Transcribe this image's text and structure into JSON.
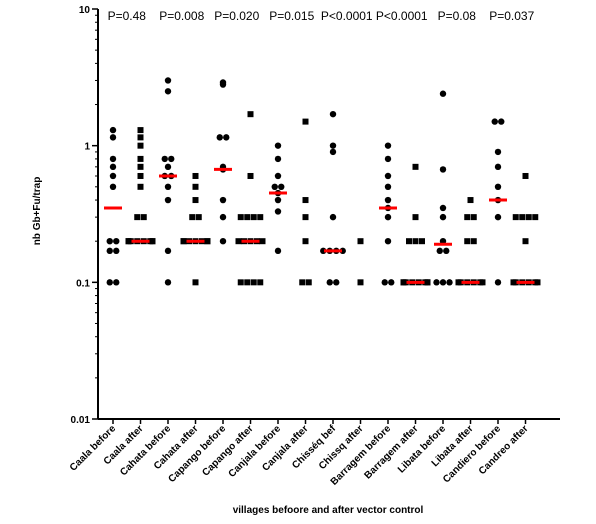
{
  "chart_data": {
    "type": "scatter",
    "ylabel": "nb Gb+Fu/trap",
    "xlabel": "villages befoore and after vector control",
    "yscale": "log",
    "ylim": [
      0.01,
      10
    ],
    "yticks": [
      {
        "value": 0.01,
        "label": "0.01"
      },
      {
        "value": 0.1,
        "label": "0.1"
      },
      {
        "value": 1,
        "label": "1"
      },
      {
        "value": 10,
        "label": "10"
      }
    ],
    "colors": {
      "points": "#000000",
      "median": "#ff0000",
      "axis": "#000000"
    },
    "p_values": [
      "P=0.48",
      "P=0.008",
      "P=0.020",
      "P=0.015",
      "P<0.0001",
      "P<0.0001",
      "P=0.08",
      "P=0.037"
    ],
    "groups": [
      {
        "label": "Caala before",
        "marker": "circle",
        "median": 0.35,
        "values": [
          1.3,
          1.15,
          0.8,
          0.7,
          0.6,
          0.5,
          0.2,
          0.2,
          0.17,
          0.17,
          0.1,
          0.1
        ]
      },
      {
        "label": "Caala after",
        "marker": "square",
        "median": 0.2,
        "values": [
          1.3,
          1.15,
          1.0,
          0.8,
          0.7,
          0.6,
          0.5,
          0.3,
          0.3,
          0.2,
          0.2,
          0.2,
          0.2,
          0.2,
          0.2,
          0.2,
          0.2
        ]
      },
      {
        "label": "Cahata before",
        "marker": "circle",
        "median": 0.6,
        "values": [
          3.0,
          2.5,
          0.8,
          0.8,
          0.7,
          0.6,
          0.6,
          0.5,
          0.4,
          0.17,
          0.1
        ]
      },
      {
        "label": "Cahata after",
        "marker": "square",
        "median": 0.2,
        "values": [
          0.6,
          0.5,
          0.4,
          0.3,
          0.3,
          0.2,
          0.2,
          0.2,
          0.2,
          0.2,
          0.2,
          0.2,
          0.1
        ]
      },
      {
        "label": "Capango before",
        "marker": "circle",
        "median": 0.67,
        "values": [
          2.9,
          2.8,
          1.15,
          1.15,
          0.7,
          0.67,
          0.4,
          0.3,
          0.2
        ]
      },
      {
        "label": "Capango after",
        "marker": "square",
        "median": 0.2,
        "values": [
          1.7,
          0.6,
          0.3,
          0.3,
          0.3,
          0.3,
          0.2,
          0.2,
          0.2,
          0.2,
          0.2,
          0.1,
          0.1,
          0.1,
          0.1
        ]
      },
      {
        "label": "Canjala before",
        "marker": "circle",
        "median": 0.45,
        "values": [
          1.0,
          0.8,
          0.6,
          0.5,
          0.5,
          0.45,
          0.4,
          0.33,
          0.17
        ]
      },
      {
        "label": "Canjala after",
        "marker": "square",
        "median": null,
        "values": [
          1.5,
          0.4,
          0.3,
          0.2,
          0.1,
          0.1
        ]
      },
      {
        "label": "Chisséq bef",
        "marker": "circle",
        "median": 0.17,
        "values": [
          1.7,
          1.0,
          0.9,
          0.3,
          0.17,
          0.17,
          0.17,
          0.17,
          0.1,
          0.1
        ]
      },
      {
        "label": "Chissq after",
        "marker": "square",
        "median": null,
        "values": [
          0.2,
          0.1
        ]
      },
      {
        "label": "Barragem before",
        "marker": "circle",
        "median": 0.35,
        "values": [
          1.0,
          0.8,
          0.6,
          0.5,
          0.4,
          0.35,
          0.3,
          0.2,
          0.1,
          0.1
        ]
      },
      {
        "label": "Barragem after",
        "marker": "square",
        "median": 0.1,
        "values": [
          0.7,
          0.3,
          0.2,
          0.2,
          0.2,
          0.1,
          0.1,
          0.1,
          0.1,
          0.1,
          0.1,
          0.1,
          0.1
        ]
      },
      {
        "label": "Libata before",
        "marker": "circle",
        "median": 0.19,
        "values": [
          2.4,
          0.67,
          0.35,
          0.3,
          0.2,
          0.17,
          0.17,
          0.1,
          0.1,
          0.1
        ]
      },
      {
        "label": "Libata after",
        "marker": "square",
        "median": 0.1,
        "values": [
          0.4,
          0.3,
          0.3,
          0.2,
          0.2,
          0.1,
          0.1,
          0.1,
          0.1,
          0.1,
          0.1
        ]
      },
      {
        "label": "Candiero before",
        "marker": "circle",
        "median": 0.4,
        "values": [
          1.5,
          1.5,
          0.9,
          0.7,
          0.5,
          0.4,
          0.3,
          0.1
        ]
      },
      {
        "label": "Candreo after",
        "marker": "square",
        "median": 0.1,
        "values": [
          0.6,
          0.3,
          0.3,
          0.3,
          0.3,
          0.2,
          0.1,
          0.1,
          0.1,
          0.1,
          0.1,
          0.1
        ]
      }
    ]
  }
}
